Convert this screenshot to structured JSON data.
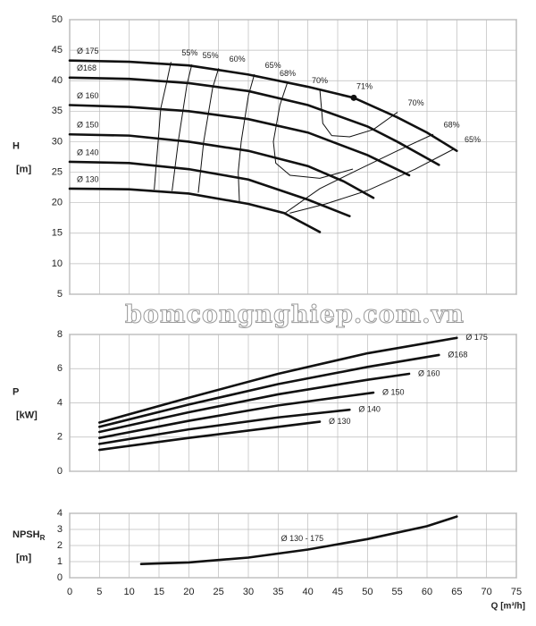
{
  "watermark": "bomcongnghiep.com.vn",
  "chart_data": [
    {
      "type": "line",
      "y_label": "H",
      "y_unit": "[m]",
      "ylim": [
        5,
        50
      ],
      "yticks": [
        5,
        10,
        15,
        20,
        25,
        30,
        35,
        40,
        45,
        50
      ],
      "xlim": [
        0,
        75
      ],
      "color": "#111111",
      "series": [
        {
          "name": "Ø 175",
          "x": [
            0,
            10,
            20,
            30,
            40,
            47.7,
            55,
            60,
            65
          ],
          "values": [
            43.3,
            43.1,
            42.5,
            41,
            39,
            37.2,
            34,
            31.5,
            28.5
          ]
        },
        {
          "name": "Ø168",
          "x": [
            0,
            10,
            20,
            30,
            40,
            50,
            55,
            62
          ],
          "values": [
            40.5,
            40.3,
            39.6,
            38.3,
            36,
            32.5,
            30,
            26.2
          ]
        },
        {
          "name": "Ø 160",
          "x": [
            0,
            10,
            20,
            30,
            40,
            50,
            57
          ],
          "values": [
            36,
            35.7,
            35,
            33.7,
            31.5,
            27.8,
            24.5
          ]
        },
        {
          "name": "Ø 150",
          "x": [
            0,
            10,
            20,
            30,
            40,
            46,
            51
          ],
          "values": [
            31.2,
            31,
            30,
            28.5,
            26,
            23.5,
            20.8
          ]
        },
        {
          "name": "Ø 140",
          "x": [
            0,
            10,
            20,
            30,
            40,
            47
          ],
          "values": [
            26.7,
            26.5,
            25.5,
            23.8,
            20.5,
            17.8
          ]
        },
        {
          "name": "Ø 130",
          "x": [
            0,
            10,
            20,
            30,
            36,
            42
          ],
          "values": [
            22.3,
            22.2,
            21.5,
            19.8,
            18.3,
            15.2
          ]
        }
      ],
      "efficiency_curves": [
        {
          "name": "55%",
          "x": [
            17,
            16.3,
            15.3,
            14.2
          ],
          "values": [
            43,
            39.8,
            35.5,
            22.2
          ]
        },
        {
          "name": "55%",
          "x": [
            20.5,
            19.7,
            18.3,
            17.2
          ],
          "values": [
            42.6,
            39.4,
            30.5,
            22
          ]
        },
        {
          "name": "60%",
          "x": [
            25,
            24,
            22.5,
            21.6
          ],
          "values": [
            42,
            38.8,
            30,
            21.7
          ]
        },
        {
          "name": "65%",
          "x": [
            31,
            30,
            28.8,
            28.3,
            28.5
          ],
          "values": [
            41,
            37.5,
            30,
            25,
            20.2
          ]
        },
        {
          "name": "68%",
          "x": [
            36.6,
            35.3,
            34.2,
            34.6,
            37,
            42,
            47.5
          ],
          "values": [
            39.8,
            36,
            30,
            26.5,
            24.5,
            24,
            25.5
          ]
        },
        {
          "name": "70%",
          "x": [
            42,
            42.5,
            44,
            47
          ],
          "values": [
            38.6,
            33,
            31,
            30.8
          ]
        },
        {
          "name": "70%",
          "x": [
            55,
            51,
            47
          ],
          "values": [
            34.8,
            32,
            30.8
          ]
        },
        {
          "name": "68%",
          "x": [
            61,
            55,
            48,
            42,
            36
          ],
          "values": [
            31.2,
            28.5,
            25.2,
            22.3,
            18.2
          ]
        },
        {
          "name": "65%",
          "x": [
            64.5,
            58,
            50,
            43,
            37
          ],
          "values": [
            28.8,
            25.5,
            22,
            19.8,
            18.3
          ]
        }
      ],
      "points": [
        {
          "label": "71%",
          "x": 47.7,
          "y": 37.2
        }
      ]
    },
    {
      "type": "line",
      "y_label": "P",
      "y_unit": "[kW]",
      "ylim": [
        0,
        8
      ],
      "yticks": [
        0,
        2,
        4,
        6,
        8
      ],
      "xlim": [
        0,
        75
      ],
      "color": "#111111",
      "series": [
        {
          "name": "Ø 175",
          "x": [
            5,
            20,
            35,
            50,
            65
          ],
          "values": [
            2.85,
            4.3,
            5.7,
            6.9,
            7.8
          ]
        },
        {
          "name": "Ø168",
          "x": [
            5,
            20,
            35,
            50,
            62
          ],
          "values": [
            2.6,
            3.9,
            5.1,
            6.1,
            6.8
          ]
        },
        {
          "name": "Ø 160",
          "x": [
            5,
            20,
            35,
            50,
            57
          ],
          "values": [
            2.3,
            3.45,
            4.5,
            5.35,
            5.7
          ]
        },
        {
          "name": "Ø 150",
          "x": [
            5,
            20,
            35,
            51
          ],
          "values": [
            1.95,
            2.95,
            3.85,
            4.6
          ]
        },
        {
          "name": "Ø 140",
          "x": [
            5,
            20,
            35,
            47
          ],
          "values": [
            1.6,
            2.45,
            3.15,
            3.6
          ]
        },
        {
          "name": "Ø 130",
          "x": [
            5,
            20,
            35,
            42
          ],
          "values": [
            1.25,
            1.95,
            2.6,
            2.9
          ]
        }
      ]
    },
    {
      "type": "line",
      "y_label": "NPSH",
      "y_label_sub": "R",
      "y_unit": "[m]",
      "x_label": "Q [m³/h]",
      "ylim": [
        0,
        4
      ],
      "yticks": [
        0,
        1,
        2,
        3,
        4
      ],
      "xlim": [
        0,
        75
      ],
      "xticks": [
        0,
        5,
        10,
        15,
        20,
        25,
        30,
        35,
        40,
        45,
        50,
        55,
        60,
        65,
        70,
        75
      ],
      "color": "#111111",
      "series": [
        {
          "name": "Ø 130 - 175",
          "x": [
            12,
            20,
            30,
            40,
            50,
            60,
            65
          ],
          "values": [
            0.85,
            0.95,
            1.25,
            1.75,
            2.4,
            3.2,
            3.8
          ]
        }
      ]
    }
  ]
}
